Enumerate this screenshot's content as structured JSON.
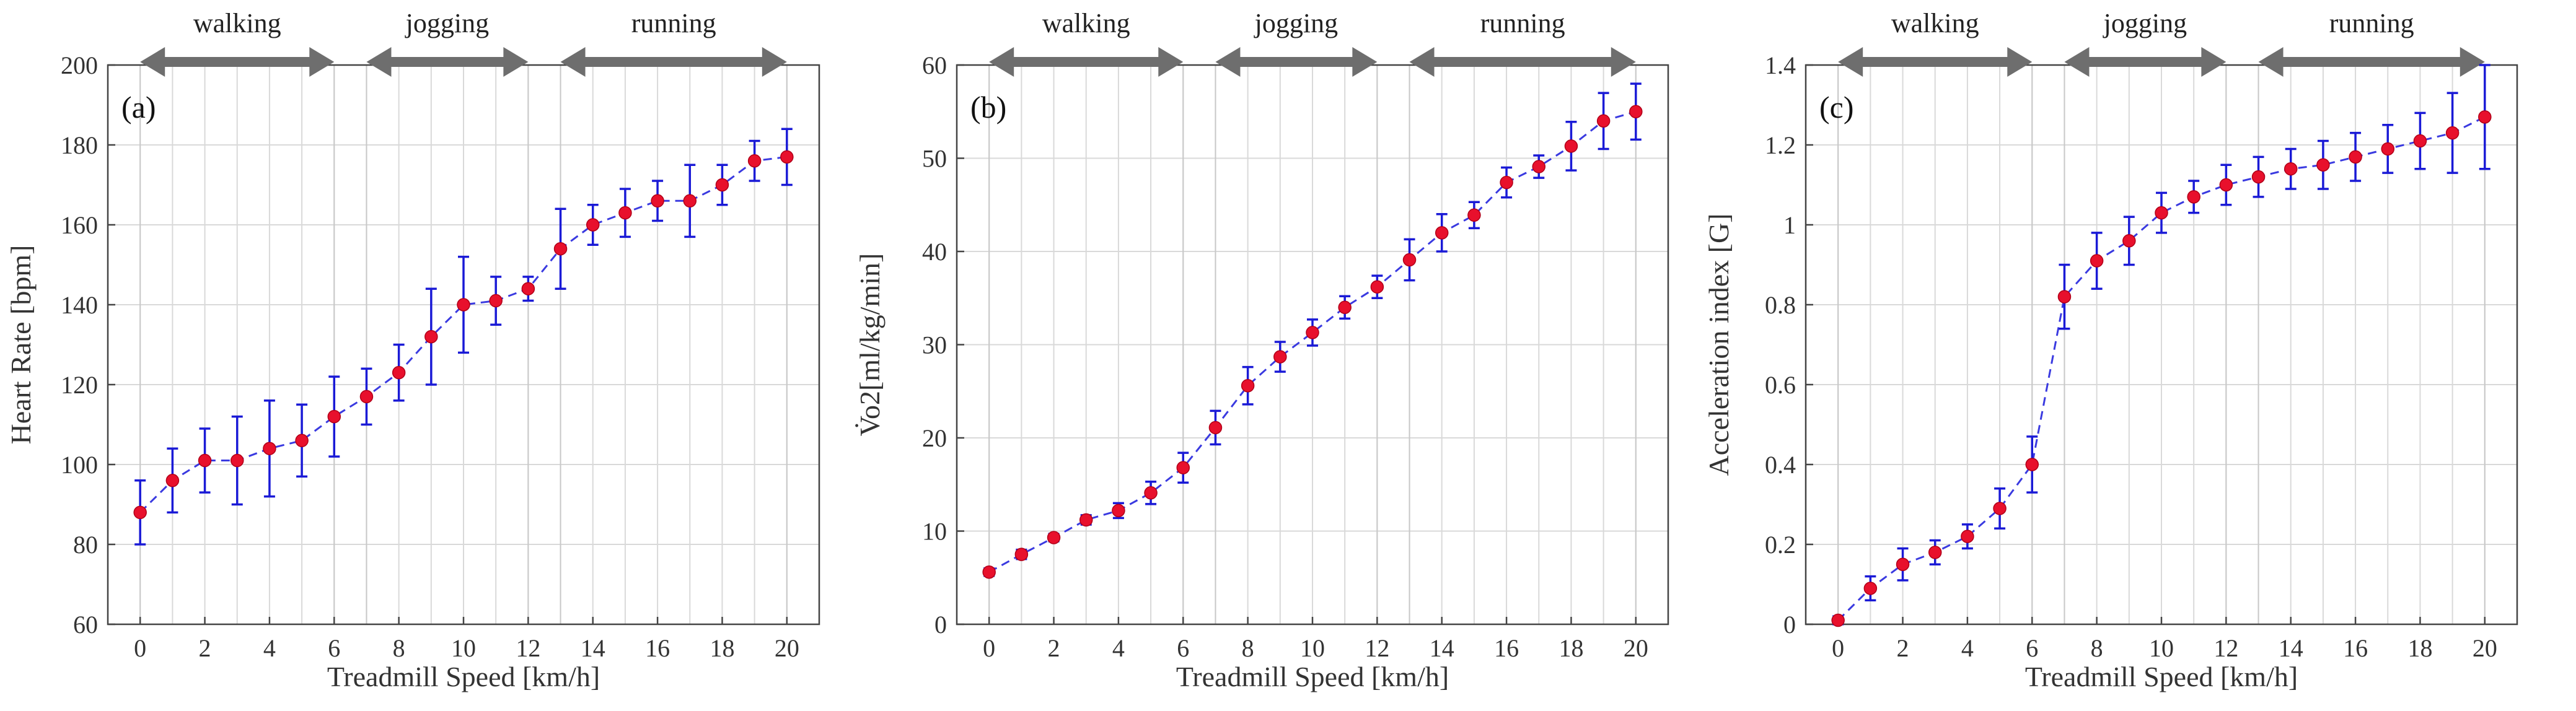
{
  "chart_data": [
    {
      "type": "line",
      "panel_label": "(a)",
      "title": "",
      "xlabel": "Treadmill Speed [km/h]",
      "ylabel": "Heart Rate [bpm]",
      "xlim": [
        -1,
        21
      ],
      "ylim": [
        60,
        200
      ],
      "x_ticks": [
        0,
        2,
        4,
        6,
        8,
        10,
        12,
        14,
        16,
        18,
        20
      ],
      "y_ticks": [
        60,
        80,
        100,
        120,
        140,
        160,
        180,
        200
      ],
      "y_tick_labels": [
        "60",
        "80",
        "100",
        "120",
        "140",
        "160",
        "180",
        "200"
      ],
      "grid": true,
      "phases": [
        {
          "label": "walking",
          "start": 0,
          "end": 6
        },
        {
          "label": "jogging",
          "start": 7,
          "end": 12
        },
        {
          "label": "running",
          "start": 13,
          "end": 20
        }
      ],
      "x": [
        0,
        1,
        2,
        3,
        4,
        5,
        6,
        7,
        8,
        9,
        10,
        11,
        12,
        13,
        14,
        15,
        16,
        17,
        18,
        19,
        20
      ],
      "values": [
        88,
        96,
        101,
        101,
        104,
        106,
        112,
        117,
        123,
        132,
        140,
        141,
        144,
        154,
        160,
        163,
        166,
        166,
        170,
        176,
        177
      ],
      "error": [
        8,
        8,
        8,
        11,
        12,
        9,
        10,
        7,
        7,
        12,
        12,
        6,
        3,
        10,
        5,
        6,
        5,
        9,
        5,
        5,
        7
      ]
    },
    {
      "type": "line",
      "panel_label": "(b)",
      "title": "",
      "xlabel": "Treadmill Speed [km/h]",
      "ylabel": "V̇o2[ml/kg/min]",
      "xlim": [
        -1,
        21
      ],
      "ylim": [
        0,
        60
      ],
      "x_ticks": [
        0,
        2,
        4,
        6,
        8,
        10,
        12,
        14,
        16,
        18,
        20
      ],
      "y_ticks": [
        0,
        10,
        20,
        30,
        40,
        50,
        60
      ],
      "y_tick_labels": [
        "0",
        "10",
        "20",
        "30",
        "40",
        "50",
        "60"
      ],
      "grid": true,
      "phases": [
        {
          "label": "walking",
          "start": 0,
          "end": 6
        },
        {
          "label": "jogging",
          "start": 7,
          "end": 12
        },
        {
          "label": "running",
          "start": 13,
          "end": 20
        }
      ],
      "x": [
        0,
        1,
        2,
        3,
        4,
        5,
        6,
        7,
        8,
        9,
        10,
        11,
        12,
        13,
        14,
        15,
        16,
        17,
        18,
        19,
        20
      ],
      "values": [
        5.6,
        7.5,
        9.3,
        11.2,
        12.2,
        14.1,
        16.8,
        21.1,
        25.6,
        28.7,
        31.3,
        34,
        36.2,
        39.1,
        42,
        43.9,
        47.4,
        49.1,
        51.3,
        54,
        55
      ],
      "error": [
        0.4,
        0.5,
        0.4,
        0.5,
        0.8,
        1.2,
        1.6,
        1.8,
        2,
        1.6,
        1.4,
        1.2,
        1.2,
        2.2,
        2,
        1.4,
        1.6,
        1.2,
        2.6,
        3,
        3
      ]
    },
    {
      "type": "line",
      "panel_label": "(c)",
      "title": "",
      "xlabel": "Treadmill Speed [km/h]",
      "ylabel": "Acceleration index [G]",
      "xlim": [
        -1,
        21
      ],
      "ylim": [
        0,
        1.4
      ],
      "x_ticks": [
        0,
        2,
        4,
        6,
        8,
        10,
        12,
        14,
        16,
        18,
        20
      ],
      "y_ticks": [
        0,
        0.2,
        0.4,
        0.6,
        0.8,
        1,
        1.2,
        1.4
      ],
      "y_tick_labels": [
        "0",
        "0.2",
        "0.4",
        "0.6",
        "0.8",
        "1",
        "1.2",
        "1.4"
      ],
      "grid": true,
      "phases": [
        {
          "label": "walking",
          "start": 0,
          "end": 6
        },
        {
          "label": "jogging",
          "start": 7,
          "end": 12
        },
        {
          "label": "running",
          "start": 13,
          "end": 20
        }
      ],
      "x": [
        0,
        1,
        2,
        3,
        4,
        5,
        6,
        7,
        8,
        9,
        10,
        11,
        12,
        13,
        14,
        15,
        16,
        17,
        18,
        19,
        20
      ],
      "values": [
        0.01,
        0.09,
        0.15,
        0.18,
        0.22,
        0.29,
        0.4,
        0.82,
        0.91,
        0.96,
        1.03,
        1.07,
        1.1,
        1.12,
        1.14,
        1.15,
        1.17,
        1.19,
        1.21,
        1.23,
        1.27
      ],
      "error": [
        0.01,
        0.03,
        0.04,
        0.03,
        0.03,
        0.05,
        0.07,
        0.08,
        0.07,
        0.06,
        0.05,
        0.04,
        0.05,
        0.05,
        0.05,
        0.06,
        0.06,
        0.06,
        0.07,
        0.1,
        0.13
      ]
    }
  ]
}
